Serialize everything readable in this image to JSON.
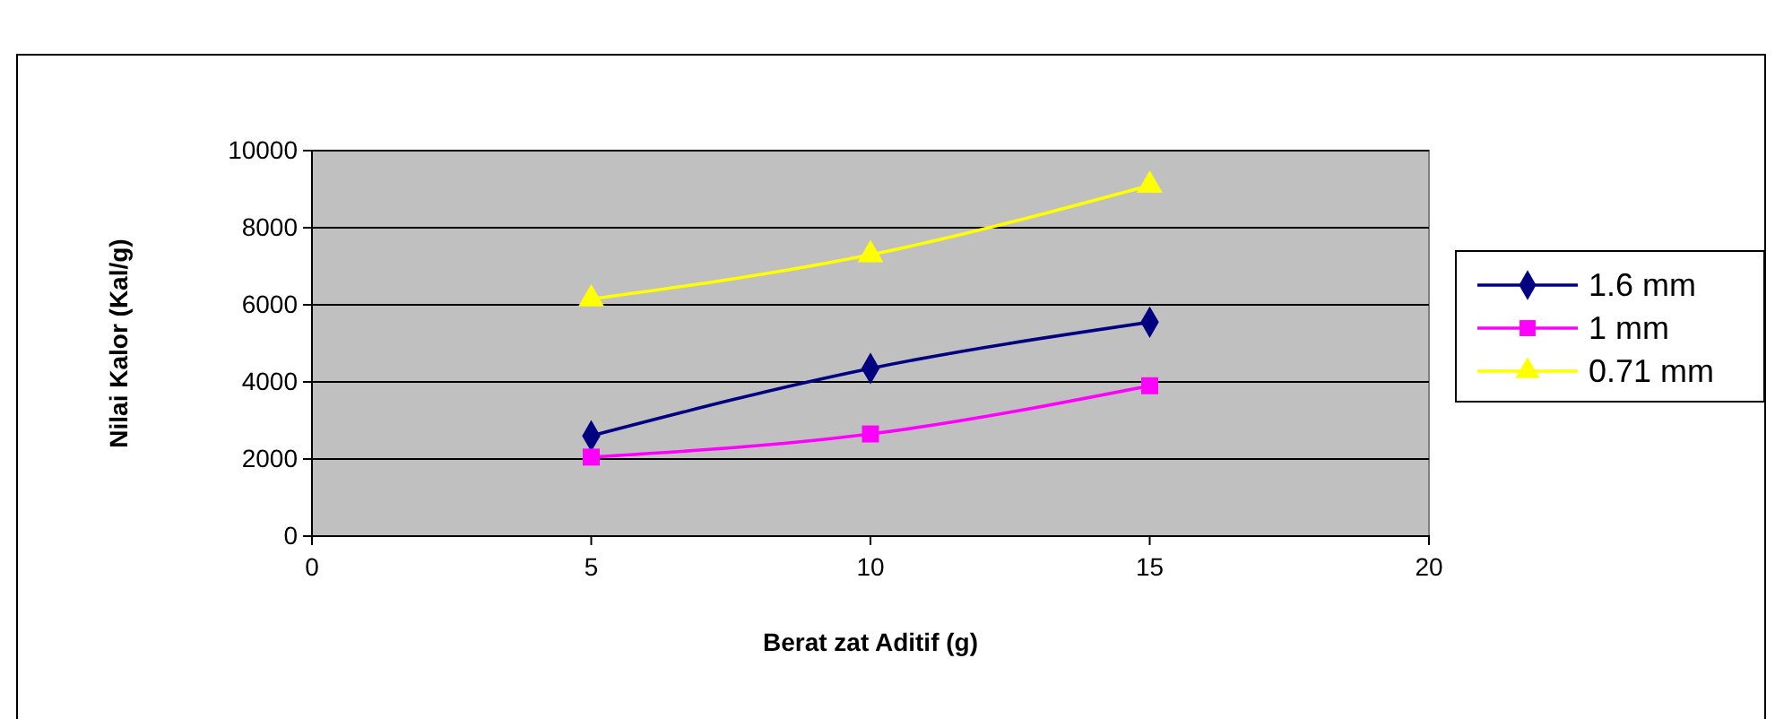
{
  "chart_data": {
    "type": "line",
    "xlabel": "Berat zat Aditif (g)",
    "ylabel": "Nilai Kalor (Kal/g)",
    "x": [
      5,
      10,
      15
    ],
    "xlim": [
      0,
      20
    ],
    "xticks": [
      0,
      5,
      10,
      15,
      20
    ],
    "ylim": [
      0,
      10000
    ],
    "yticks": [
      0,
      2000,
      4000,
      6000,
      8000,
      10000
    ],
    "grid": "y",
    "legend": "right",
    "series": [
      {
        "name": "1.6 mm",
        "color": "#000080",
        "marker": "diamond",
        "values": [
          2600,
          4350,
          5550
        ]
      },
      {
        "name": "1 mm",
        "color": "#ff00ff",
        "marker": "square",
        "values": [
          2050,
          2650,
          3900
        ]
      },
      {
        "name": "0.71 mm",
        "color": "#ffff00",
        "marker": "triangle",
        "values": [
          6150,
          7300,
          9100
        ]
      }
    ]
  }
}
